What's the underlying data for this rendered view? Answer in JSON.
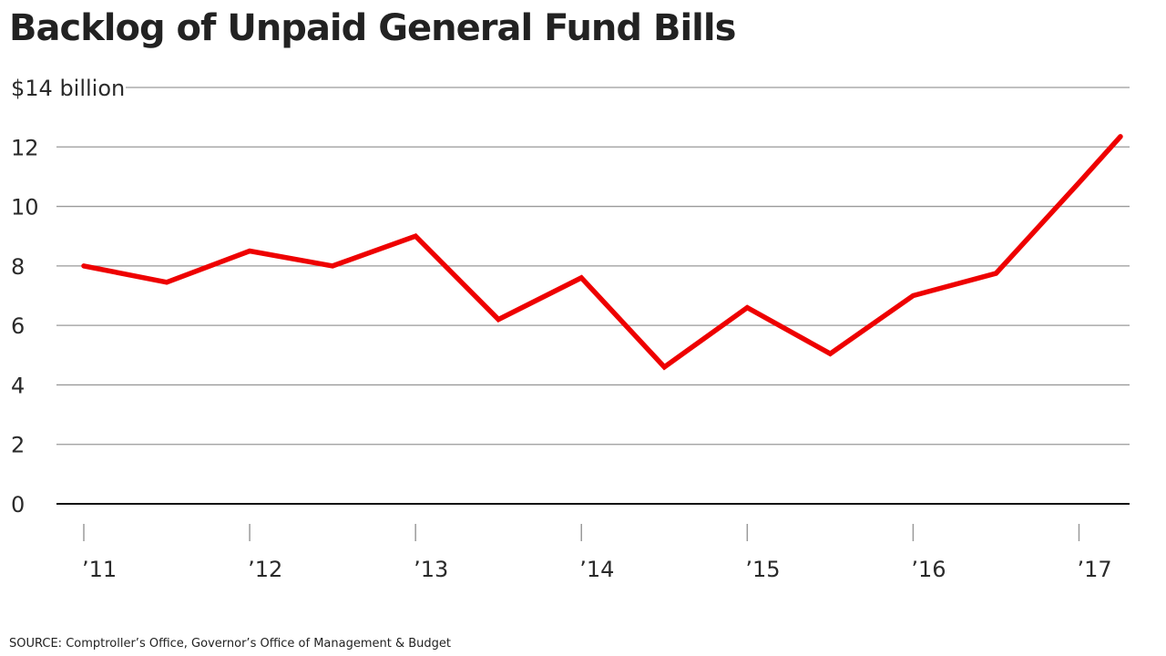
{
  "title": "Backlog of Unpaid General Fund Bills",
  "source": "SOURCE: Comptroller’s Office, Governor’s Office of Management & Budget",
  "colors": {
    "line": "#ee0000"
  },
  "chart_data": {
    "type": "line",
    "title": "Backlog of Unpaid General Fund Bills",
    "xlabel": "",
    "ylabel": "",
    "ylim": [
      0,
      14
    ],
    "xlim": [
      2011,
      2017.25
    ],
    "grid": true,
    "y_ticks": [
      {
        "value": 0,
        "label": "0"
      },
      {
        "value": 2,
        "label": "2"
      },
      {
        "value": 4,
        "label": "4"
      },
      {
        "value": 6,
        "label": "6"
      },
      {
        "value": 8,
        "label": "8"
      },
      {
        "value": 10,
        "label": "10"
      },
      {
        "value": 12,
        "label": "12"
      },
      {
        "value": 14,
        "label": "$14 billion"
      }
    ],
    "x_ticks": [
      {
        "value": 2011,
        "label": "’11"
      },
      {
        "value": 2012,
        "label": "’12"
      },
      {
        "value": 2013,
        "label": "’13"
      },
      {
        "value": 2014,
        "label": "’14"
      },
      {
        "value": 2015,
        "label": "’15"
      },
      {
        "value": 2016,
        "label": "’16"
      },
      {
        "value": 2017,
        "label": "’17"
      }
    ],
    "series": [
      {
        "x": [
          2011,
          2011.5,
          2012,
          2012.5,
          2013,
          2013.5,
          2014,
          2014.5,
          2015,
          2015.5,
          2016,
          2016.5,
          2017,
          2017.25
        ],
        "values": [
          8.0,
          7.45,
          8.5,
          8.0,
          9.0,
          6.2,
          7.6,
          4.6,
          6.6,
          5.05,
          7.0,
          7.75,
          10.8,
          12.35
        ]
      }
    ]
  }
}
